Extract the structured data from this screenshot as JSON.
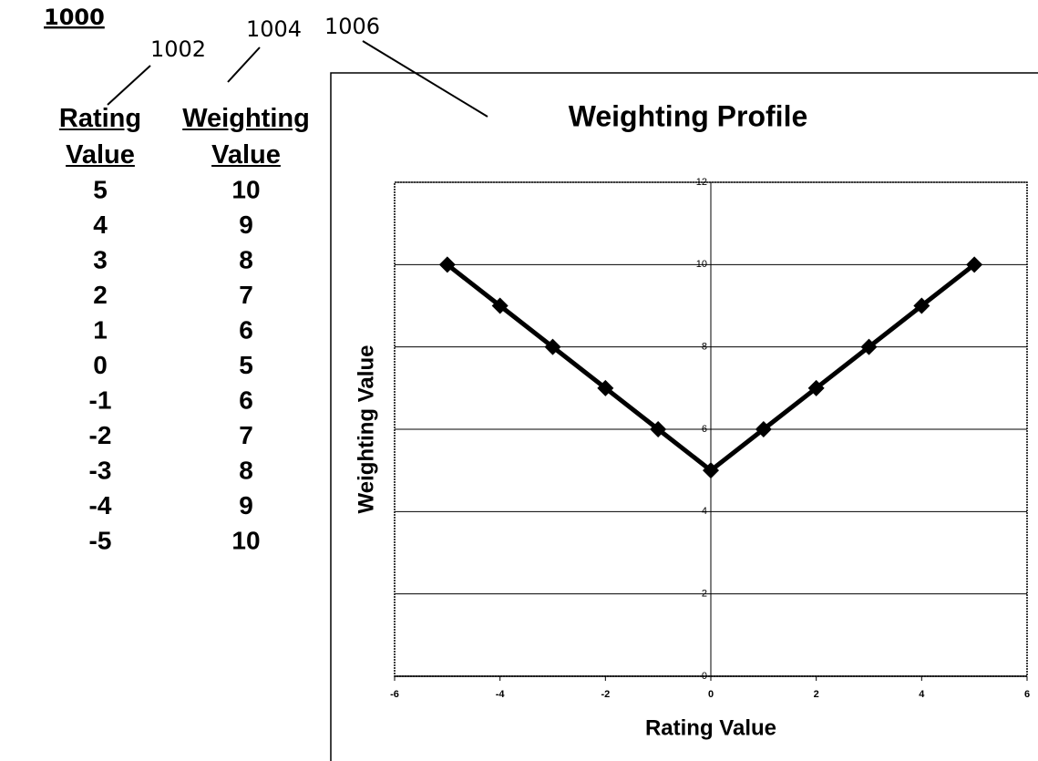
{
  "figure_label": "1000",
  "callouts": [
    "1002",
    "1004",
    "1006"
  ],
  "table": {
    "headers": [
      "Rating Value",
      "Weighting Value"
    ],
    "rows": [
      [
        5,
        10
      ],
      [
        4,
        9
      ],
      [
        3,
        8
      ],
      [
        2,
        7
      ],
      [
        1,
        6
      ],
      [
        0,
        5
      ],
      [
        -1,
        6
      ],
      [
        -2,
        7
      ],
      [
        -3,
        8
      ],
      [
        -4,
        9
      ],
      [
        -5,
        10
      ]
    ]
  },
  "chart_data": {
    "type": "line",
    "title": "Weighting Profile",
    "x_label": "Rating Value",
    "y_label": "Weighting Value",
    "x": [
      -5,
      -4,
      -3,
      -2,
      -1,
      0,
      1,
      2,
      3,
      4,
      5
    ],
    "values": [
      10,
      9,
      8,
      7,
      6,
      5,
      6,
      7,
      8,
      9,
      10
    ],
    "color": "#000000",
    "xlim": [
      -6,
      6
    ],
    "xticks": [
      -6,
      -4,
      -2,
      0,
      2,
      4,
      6
    ],
    "ylim": [
      0,
      12
    ],
    "yticks": [
      0,
      2,
      4,
      6,
      8,
      10,
      12
    ],
    "grid": true
  }
}
